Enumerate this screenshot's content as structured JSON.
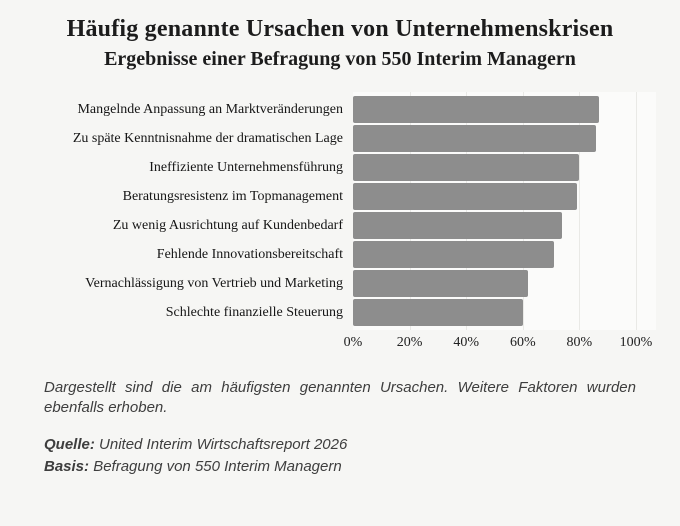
{
  "header": {
    "title": "Häufig genannte Ursachen von Unternehmenskrisen",
    "subtitle": "Ergebnisse einer Befragung von 550 Interim Managern"
  },
  "chart_data": {
    "type": "bar",
    "orientation": "horizontal",
    "categories": [
      "Mangelnde Anpassung an Marktveränderungen",
      "Zu späte Kenntnisnahme der dramatischen Lage",
      "Ineffiziente Unternehmensführung",
      "Beratungsresistenz im Topmanagement",
      "Zu wenig Ausrichtung auf Kundenbedarf",
      "Fehlende Innovationsbereitschaft",
      "Vernachlässigung von Vertrieb und Marketing",
      "Schlechte finanzielle Steuerung"
    ],
    "values": [
      87,
      86,
      80,
      79,
      74,
      71,
      62,
      60
    ],
    "unit": "%",
    "title": "Häufig genannte Ursachen von Unternehmenskrisen",
    "xlabel": "",
    "ylabel": "",
    "xlim": [
      0,
      100
    ],
    "x_tick_labels": [
      "0%",
      "20%",
      "40%",
      "60%",
      "80%",
      "100%"
    ],
    "x_tick_values": [
      0,
      20,
      40,
      60,
      80,
      100
    ],
    "grid": true,
    "legend": false,
    "bar_color": "#8d8d8d",
    "plot_background": "#fbfbfa",
    "page_background": "#f6f6f4"
  },
  "footnote": {
    "line1": "Dargestellt sind die am häufigsten genannten Ursachen. Weitere Faktoren wurden",
    "line2": "ebenfalls erhoben.",
    "source_label": "Quelle:",
    "source_text": "United Interim Wirtschaftsreport 2026",
    "basis_label": "Basis:",
    "basis_text": "Befragung von 550 Interim Managern"
  }
}
